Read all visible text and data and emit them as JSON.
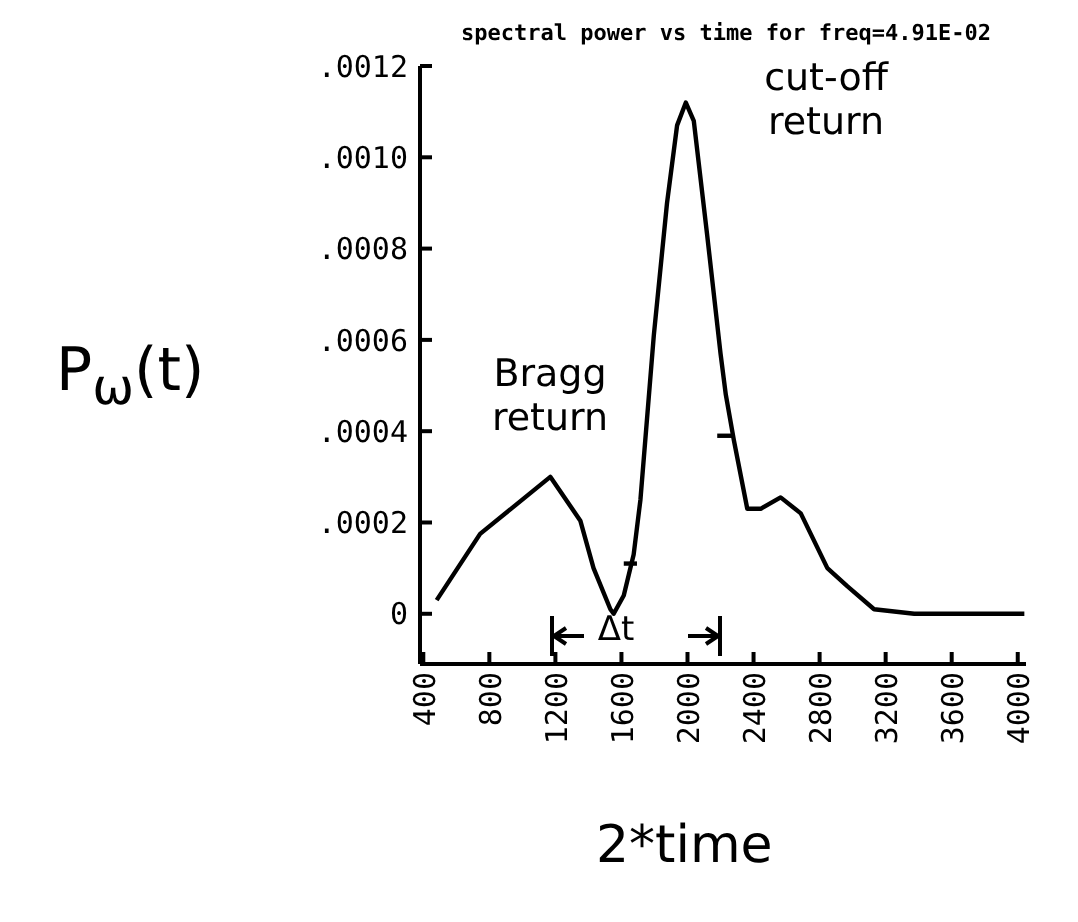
{
  "chart_data": {
    "type": "line",
    "title": "spectral power vs time for freq=4.91E-02",
    "xlabel": "2*time",
    "ylabel": "P$_{ω}$(t)",
    "xlim": [
      380,
      4050
    ],
    "xticks": [
      400,
      800,
      1200,
      1600,
      2000,
      2400,
      2800,
      3200,
      3600,
      4000
    ],
    "ylim": [
      -0.00011,
      0.0012
    ],
    "yticks": [
      0,
      {
        "value": 0.0002,
        "label": ".0002"
      },
      {
        "value": 0.0004,
        "label": ".0004"
      },
      {
        "value": 0.0006,
        "label": ".0006"
      },
      {
        "value": 0.0008,
        "label": ".0008"
      },
      {
        "value": 0.001,
        "label": ".0010"
      },
      {
        "value": 0.0012,
        "label": ".0012"
      }
    ],
    "grid": false,
    "legend": false,
    "marker": "none",
    "line_style": "solid",
    "series": [
      {
        "color": "#000000",
        "x": [
          481,
          744,
          1169,
          1351,
          1431,
          1533,
          1553,
          1614,
          1674,
          1715,
          1796,
          1876,
          1937,
          1990,
          2038,
          2119,
          2200,
          2232,
          2281,
          2362,
          2443,
          2564,
          2686,
          2847,
          2969,
          3130,
          3373,
          4040
        ],
        "values": [
          3e-05,
          0.000175,
          0.0003,
          0.000204,
          0.0001,
          1e-05,
          0,
          4e-05,
          0.00013,
          0.00025,
          0.00061,
          0.0009,
          0.00107,
          0.00112,
          0.00108,
          0.00083,
          0.00057,
          0.00048,
          0.00038,
          0.00023,
          0.00023,
          0.000255,
          0.00022,
          0.0001,
          6e-05,
          1e-05,
          0,
          0
        ]
      },
      {
        "color": "#000000",
        "x": [
          1614,
          1694
        ],
        "values": [
          0.00011,
          0.00011
        ]
      },
      {
        "color": "#000000",
        "x": [
          2180,
          2281
        ],
        "values": [
          0.00039,
          0.00039
        ]
      }
    ],
    "annotations": [
      "Bragg return",
      "cut-off return",
      "Δt"
    ]
  }
}
